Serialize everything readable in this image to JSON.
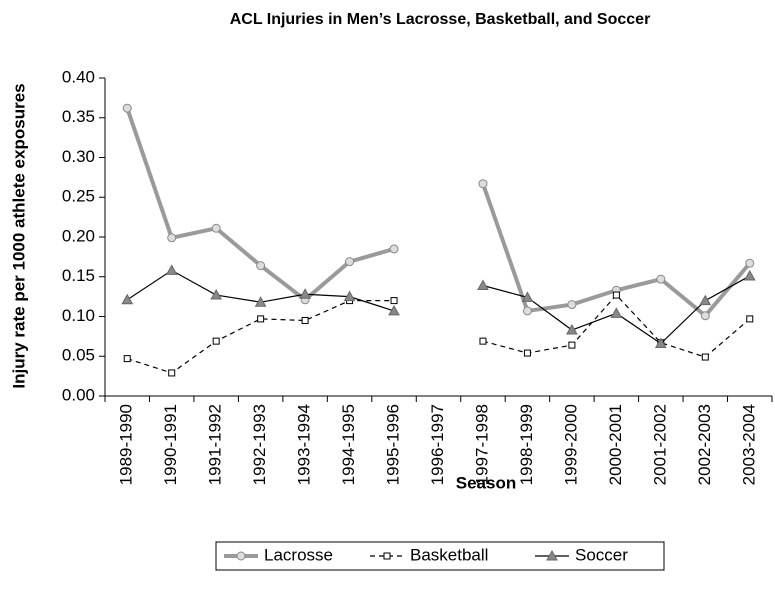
{
  "chart_data": {
    "type": "line",
    "title": "ACL Injuries in Men’s Lacrosse, Basketball, and Soccer",
    "x_label": "Season",
    "y_label": "Injury rate per 1000 athlete exposures",
    "categories": [
      "1989-1990",
      "1990-1991",
      "1991-1992",
      "1992-1993",
      "1993-1994",
      "1994-1995",
      "1995-1996",
      "1996-1997",
      "1997-1998",
      "1998-1999",
      "1999-2000",
      "2000-2001",
      "2001-2002",
      "2002-2003",
      "2003-2004"
    ],
    "series": [
      {
        "name": "Lacrosse",
        "color": "#9a9a9a",
        "marker": "circle",
        "dash": false,
        "values": [
          0.362,
          0.199,
          0.211,
          0.164,
          0.121,
          0.169,
          0.185,
          null,
          0.267,
          0.107,
          0.115,
          0.133,
          0.147,
          0.101,
          0.167
        ]
      },
      {
        "name": "Basketball",
        "color": "#000000",
        "marker": "square",
        "dash": true,
        "values": [
          0.047,
          0.029,
          0.069,
          0.097,
          0.095,
          0.12,
          0.12,
          null,
          0.069,
          0.054,
          0.064,
          0.127,
          0.067,
          0.049,
          0.097
        ]
      },
      {
        "name": "Soccer",
        "color": "#000000",
        "marker": "triangle",
        "dash": false,
        "values": [
          0.121,
          0.158,
          0.127,
          0.118,
          0.128,
          0.125,
          0.107,
          null,
          0.139,
          0.124,
          0.083,
          0.104,
          0.066,
          0.12,
          0.151
        ]
      }
    ],
    "ylim": [
      0,
      0.4
    ],
    "yticks": [
      {
        "value": 0,
        "label": "0.00"
      },
      {
        "value": 0.05,
        "label": "0.05"
      },
      {
        "value": 0.1,
        "label": "0.10"
      },
      {
        "value": 0.15,
        "label": "0.15"
      },
      {
        "value": 0.2,
        "label": "0.20"
      },
      {
        "value": 0.25,
        "label": "0.25"
      },
      {
        "value": 0.3,
        "label": "0.30"
      },
      {
        "value": 0.35,
        "label": "0.35"
      },
      {
        "value": 0.4,
        "label": "0.40"
      }
    ],
    "legend": "bottom"
  }
}
